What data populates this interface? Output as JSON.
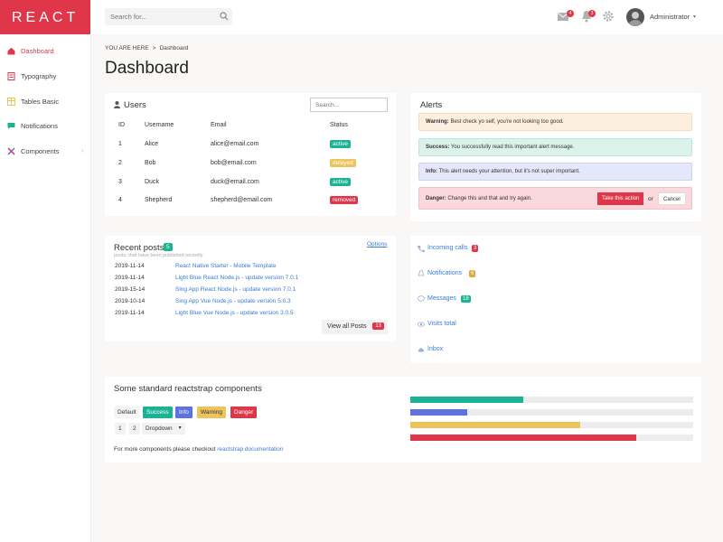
{
  "brand": "REACT",
  "topbar": {
    "search_placeholder": "Search for...",
    "mail_count": "4",
    "bell_count": "3",
    "user": "Administrator"
  },
  "sidebar": {
    "items": [
      {
        "label": "Dashboard",
        "icon": "home-icon"
      },
      {
        "label": "Typography",
        "icon": "typography-icon"
      },
      {
        "label": "Tables Basic",
        "icon": "tables-icon"
      },
      {
        "label": "Notifications",
        "icon": "notifications-icon"
      },
      {
        "label": "Components",
        "icon": "components-icon"
      }
    ]
  },
  "breadcrumb": {
    "prefix": "YOU ARE HERE",
    "current": "Dashboard"
  },
  "page_title": "Dashboard",
  "users": {
    "title": "Users",
    "search_placeholder": "Search...",
    "headers": [
      "ID",
      "Username",
      "Email",
      "Status"
    ],
    "rows": [
      {
        "id": "1",
        "name": "Alice",
        "email": "alice@email.com",
        "status": "active",
        "color": "#1ab394"
      },
      {
        "id": "2",
        "name": "Bob",
        "email": "bob@email.com",
        "status": "delayed",
        "color": "#efc35b"
      },
      {
        "id": "3",
        "name": "Duck",
        "email": "duck@email.com",
        "status": "active",
        "color": "#1ab394"
      },
      {
        "id": "4",
        "name": "Shepherd",
        "email": "shepherd@email.com",
        "status": "removed",
        "color": "#e0364a"
      }
    ]
  },
  "alerts": {
    "title": "Alerts",
    "items": [
      {
        "strong": "Warning:",
        "text": "Best check yo self, you're not looking too good.",
        "bg": "#fcefe0",
        "border": "#f7dcc0"
      },
      {
        "strong": "Success:",
        "text": "You successfully read this important alert message.",
        "bg": "#dbf3ec",
        "border": "#bce8da"
      },
      {
        "strong": "Info:",
        "text": "This alert needs your attention, but it's not super important.",
        "bg": "#e5e8fa",
        "border": "#ccd2f5"
      },
      {
        "strong": "Danger:",
        "text": "Change this and that and try again.",
        "bg": "#fad8dc",
        "border": "#f5bfc6"
      }
    ],
    "action": "Take this action",
    "or": "or",
    "cancel": "Cancel"
  },
  "posts": {
    "title": "Recent posts",
    "count": "5",
    "subtitle": "posts, that have been published recently",
    "options": "Options",
    "items": [
      {
        "date": "2019-11-14",
        "title": "React Native Starter - Mobile Template"
      },
      {
        "date": "2019-11-14",
        "title": "Light Blue React Node.js - update version 7.0.1"
      },
      {
        "date": "2019-15-14",
        "title": "Sing App React Node.js - update version 7.0.1"
      },
      {
        "date": "2019-10-14",
        "title": "Sing App Vue Node.js - update version 5.0.3"
      },
      {
        "date": "2019-11-14",
        "title": "Light Blue Vue Node.js - update version 3.0.5"
      }
    ],
    "view_all": "View all Posts",
    "view_all_count": "13"
  },
  "links": [
    {
      "label": "Incoming calls",
      "badge": "3",
      "color": "#e0364a",
      "icon": "phone-icon"
    },
    {
      "label": "Notifications",
      "badge": "6",
      "color": "#e2a53a",
      "icon": "bell-icon"
    },
    {
      "label": "Messages",
      "badge": "18",
      "color": "#1ab394",
      "icon": "comment-icon"
    },
    {
      "label": "Visits total",
      "badge": "",
      "color": "",
      "icon": "eye-icon"
    },
    {
      "label": "Inbox",
      "badge": "",
      "color": "",
      "icon": "cloud-icon"
    }
  ],
  "components": {
    "title": "Some standard reactstrap components",
    "buttons": [
      {
        "label": "Default",
        "bg": "#f5f5f5",
        "fg": "#333"
      },
      {
        "label": "Success",
        "bg": "#1ab394",
        "fg": "#fff"
      },
      {
        "label": "Info",
        "bg": "#5d72e0",
        "fg": "#fff"
      },
      {
        "label": "Warning",
        "bg": "#efc35b",
        "fg": "#333"
      },
      {
        "label": "Danger",
        "bg": "#e0364a",
        "fg": "#fff"
      }
    ],
    "group": [
      "1",
      "2",
      "Dropdown"
    ],
    "footer_text": "For more components please checkout",
    "footer_link": "reactstrap documentation",
    "progress": [
      {
        "value": 0.4,
        "color": "#1ab394"
      },
      {
        "value": 0.2,
        "color": "#5d72e0"
      },
      {
        "value": 0.6,
        "color": "#efc35b"
      },
      {
        "value": 0.8,
        "color": "#e0364a"
      }
    ]
  }
}
